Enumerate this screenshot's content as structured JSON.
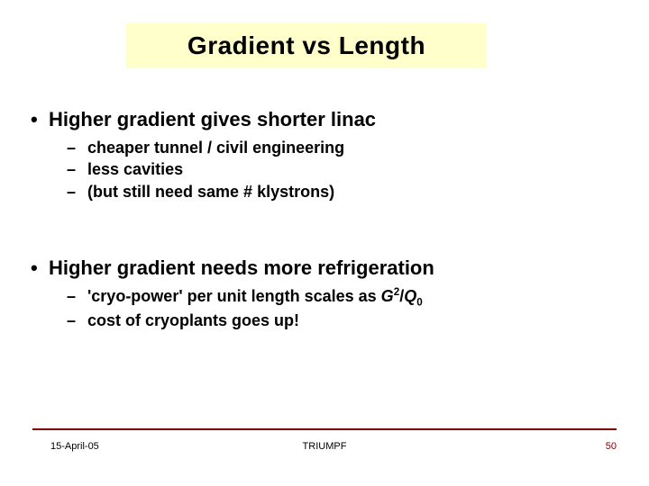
{
  "title": "Gradient vs Length",
  "title_bg": "#ffffcc",
  "title_color": "#000000",
  "title_fontsize": 28,
  "point1": {
    "text": "Higher gradient gives shorter linac",
    "subs": [
      "cheaper tunnel / civil engineering",
      "less cavities",
      "(but still need same # klystrons)"
    ]
  },
  "point2": {
    "text": "Higher gradient needs more refrigeration",
    "subs": [
      {
        "prefix": "'cryo-power' per unit length scales as ",
        "var1": "G",
        "sup": "2",
        "slash": "/",
        "var2": "Q",
        "sub": "0"
      },
      "cost of cryoplants goes up!"
    ]
  },
  "body_fontsize_main": 22,
  "body_fontsize_sub": 18,
  "text_color": "#000000",
  "footer": {
    "date": "15-April-05",
    "center": "TRIUMPF",
    "page": "50",
    "line_color": "#800000",
    "page_color": "#800000",
    "fontsize": 11
  },
  "background_color": "#ffffff"
}
